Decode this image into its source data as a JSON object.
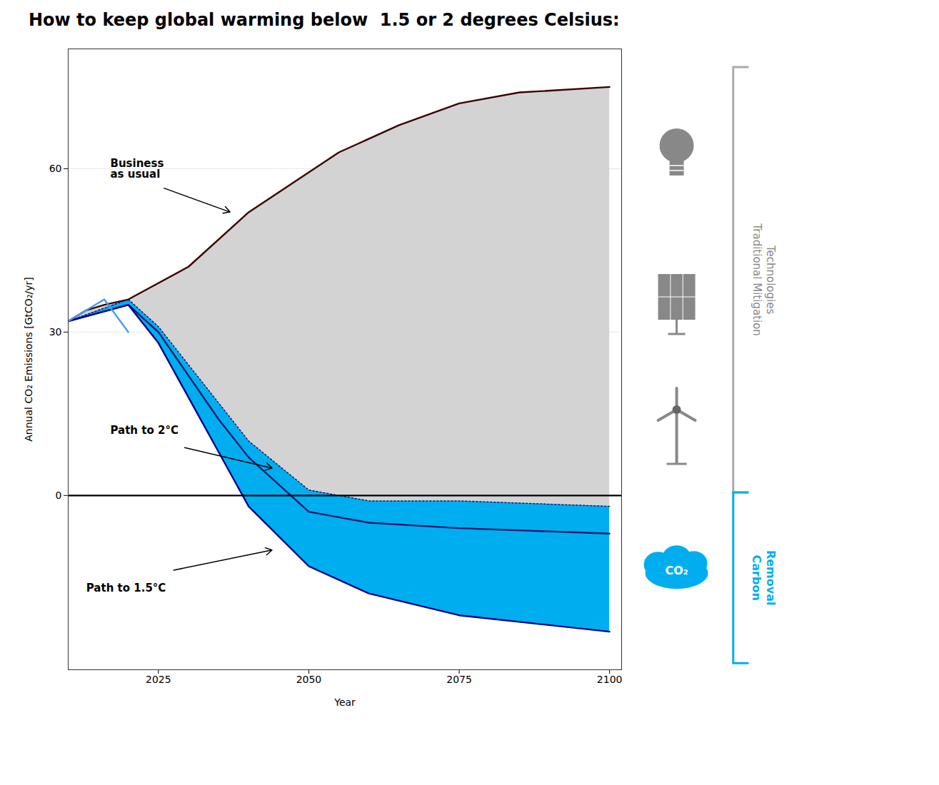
{
  "chart_data": {
    "type": "line",
    "title": "How to keep global warming below  1.5 or 2 degrees Celsius:",
    "xlabel": "Year",
    "ylabel": "Annual CO₂ Emissions [GtCO₂/yr]",
    "xlim": [
      2010,
      2102
    ],
    "ylim": [
      -32,
      82
    ],
    "xticks": [
      2025,
      2050,
      2075,
      2100
    ],
    "yticks": [
      0,
      30,
      60
    ],
    "grid": "y",
    "series": [
      {
        "color": "#3d0000",
        "line_style": "solid",
        "x": [
          2010,
          2013,
          2016,
          2020,
          2030,
          2040,
          2055,
          2065,
          2075,
          2085,
          2100
        ],
        "values": [
          32,
          34,
          35,
          36,
          42,
          52,
          63,
          68,
          72,
          74,
          75
        ]
      },
      {
        "color": "#1a1a6e",
        "line_style": "dotted",
        "x": [
          2010,
          2020,
          2025,
          2030,
          2035,
          2040,
          2050,
          2060,
          2075,
          2100
        ],
        "values": [
          32,
          36,
          31,
          24,
          17,
          10,
          1,
          -1,
          -1,
          -2
        ]
      },
      {
        "color": "#1a1a6e",
        "line_style": "solid",
        "x": [
          2010,
          2020,
          2025,
          2030,
          2035,
          2040,
          2050,
          2060,
          2075,
          2100
        ],
        "values": [
          32,
          35,
          30,
          22,
          14,
          7,
          -3,
          -5,
          -6,
          -7
        ]
      },
      {
        "color": "#00008B",
        "line_style": "solid",
        "x": [
          2010,
          2020,
          2025,
          2030,
          2035,
          2040,
          2050,
          2060,
          2075,
          2100
        ],
        "values": [
          32,
          35,
          28,
          18,
          8,
          -2,
          -13,
          -18,
          -22,
          -25
        ]
      },
      {
        "color": "#4499EE",
        "line_style": "solid",
        "x": [
          2010,
          2016,
          2020
        ],
        "values": [
          32,
          36,
          30
        ]
      }
    ],
    "fills": [
      {
        "color": "#d3d3d3",
        "between": [
          1,
          0
        ]
      },
      {
        "color": "#00AEEF",
        "between": [
          3,
          1
        ]
      }
    ],
    "zero_line": {
      "y": 0,
      "color": "#000000"
    },
    "annotations": [
      {
        "text": "Business\nas usual",
        "x": 2017,
        "y": 60,
        "arrow_x": 2037,
        "arrow_y": 52
      },
      {
        "text": "Path to 2°C",
        "x": 2017,
        "y": 12,
        "arrow_x": 2044,
        "arrow_y": 5
      },
      {
        "text": "Path to 1.5°C",
        "x": 2013,
        "y": -17,
        "arrow_x": 2044,
        "arrow_y": -10
      }
    ],
    "side_labels": [
      {
        "text": "Traditional Mitigation\nTechnologies",
        "color": "#888888"
      },
      {
        "text": "Carbon\nRemoval",
        "color": "#00AEEF"
      }
    ],
    "icon_label": {
      "text": "CO₂",
      "color": "#00AEEF"
    }
  }
}
